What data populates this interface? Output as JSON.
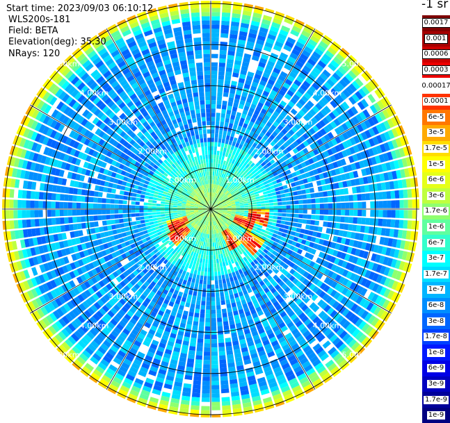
{
  "header": {
    "start_time": "Start time: 2023/09/03 06:10:12",
    "instrument": "WLS200s-181",
    "field": "Field: BETA",
    "elevation": "Elevation(deg): 35.30",
    "nrays": "NRays: 120"
  },
  "colorbar": {
    "title": "-1 sr",
    "labels": [
      "0.0017",
      "0.001",
      "0.0006",
      "0.0003",
      "0.00017",
      "0.0001",
      "6e-5",
      "3e-5",
      "1.7e-5",
      "1e-5",
      "6e-6",
      "3e-6",
      "1.7e-6",
      "1e-6",
      "6e-7",
      "3e-7",
      "1.7e-7",
      "1e-7",
      "6e-8",
      "3e-8",
      "1.7e-8",
      "1e-8",
      "6e-9",
      "3e-9",
      "1.7e-9",
      "1e-9"
    ],
    "colors": [
      "#7f0000",
      "#a50000",
      "#cc0000",
      "#ee0000",
      "#ffffff",
      "#ff3300",
      "#ff7700",
      "#ffaa00",
      "#ffdd00",
      "#ffff00",
      "#e5ff19",
      "#bfff3f",
      "#8fff6f",
      "#5fff9f",
      "#33ffcc",
      "#00ffff",
      "#00ddff",
      "#00b5ff",
      "#008eff",
      "#0066ff",
      "#0040ff",
      "#0018ff",
      "#0000e6",
      "#0000c0",
      "#00009a",
      "#000080"
    ]
  },
  "chart_data": {
    "type": "ppi",
    "field": "BETA",
    "units": "sr-1",
    "elevation_deg": 35.3,
    "n_rays": 120,
    "range_ring_labels": [
      "1.00km",
      "2.00km",
      "3.00km",
      "4.00km",
      "5.00km"
    ],
    "range_rings_km": [
      1,
      2,
      3,
      4,
      5
    ],
    "max_range_km": 5.1,
    "spoke_angles_deg": [
      0,
      30,
      60,
      90,
      120,
      150,
      180,
      210,
      240,
      270,
      300,
      330
    ],
    "high_echo_regions": [
      {
        "bearing_deg": 112,
        "range_km": 0.9
      },
      {
        "bearing_deg": 130,
        "range_km": 1.3
      },
      {
        "bearing_deg": 100,
        "range_km": 1.2
      },
      {
        "bearing_deg": 148,
        "range_km": 0.9
      },
      {
        "bearing_deg": 232,
        "range_km": 1.0
      },
      {
        "bearing_deg": 245,
        "range_km": 0.9
      }
    ]
  }
}
